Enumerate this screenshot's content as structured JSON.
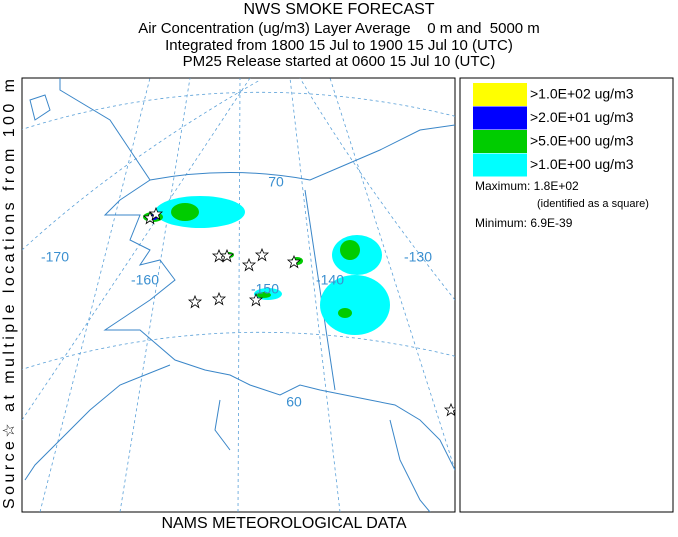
{
  "header": {
    "title": "NWS SMOKE FORECAST",
    "lines": [
      "Air Concentration (ug/m3) Layer Average    0 m and  5000 m",
      "Integrated from 1800 15 Jul to 1900 15 Jul 10 (UTC)",
      "PM25 Release started at 0600 15 Jul 10 (UTC)"
    ]
  },
  "side_label": "Source☆ at multiple locations from 100 m",
  "footer": "NAMS METEOROLOGICAL DATA",
  "legend": [
    {
      "label": ">1.0E+02 ug/m3",
      "color": "#ffff00"
    },
    {
      "label": ">2.0E+01 ug/m3",
      "color": "#0000ff"
    },
    {
      "label": ">5.0E+00 ug/m3",
      "color": "#00cc00"
    },
    {
      "label": ">1.0E+00 ug/m3",
      "color": "#00ffff"
    }
  ],
  "stats": {
    "maximum": "Maximum: 1.8E+02",
    "note": "(identified as a square)",
    "minimum": "Minimum: 6.9E-39"
  },
  "map_labels": [
    "70",
    "-170",
    "-160",
    "-150",
    "-140",
    "-130",
    "60"
  ]
}
